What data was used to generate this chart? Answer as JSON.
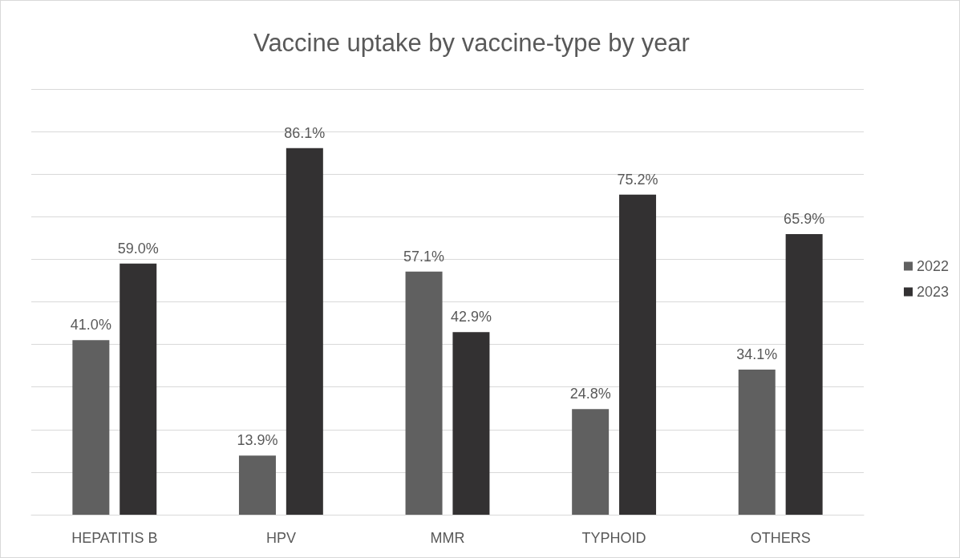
{
  "chart_data": {
    "type": "bar",
    "title": "Vaccine uptake by vaccine-type by year",
    "categories": [
      "HEPATITIS B",
      "HPV",
      "MMR",
      "TYPHOID",
      "OTHERS"
    ],
    "series": [
      {
        "name": "2022",
        "color": "#606060",
        "values": [
          41.0,
          13.9,
          57.1,
          24.8,
          34.1
        ],
        "value_labels": [
          "41.0%",
          "13.9%",
          "57.1%",
          "24.8%",
          "34.1%"
        ]
      },
      {
        "name": "2023",
        "color": "#333132",
        "values": [
          59.0,
          86.1,
          42.9,
          75.2,
          65.9
        ],
        "value_labels": [
          "59.0%",
          "86.1%",
          "42.9%",
          "75.2%",
          "65.9%"
        ]
      }
    ],
    "ylim": [
      0,
      100
    ],
    "yticks": [
      {
        "value": 0,
        "label": null
      },
      {
        "value": 10,
        "label": null
      },
      {
        "value": 20,
        "label": null
      },
      {
        "value": 30,
        "label": null
      },
      {
        "value": 40,
        "label": null
      },
      {
        "value": 50,
        "label": null
      },
      {
        "value": 60,
        "label": null
      },
      {
        "value": 70,
        "label": null
      },
      {
        "value": 80,
        "label": null
      },
      {
        "value": 90,
        "label": null
      },
      {
        "value": 100,
        "label": null
      }
    ],
    "tick_labels": "x",
    "grid": "y",
    "legend": "right"
  }
}
